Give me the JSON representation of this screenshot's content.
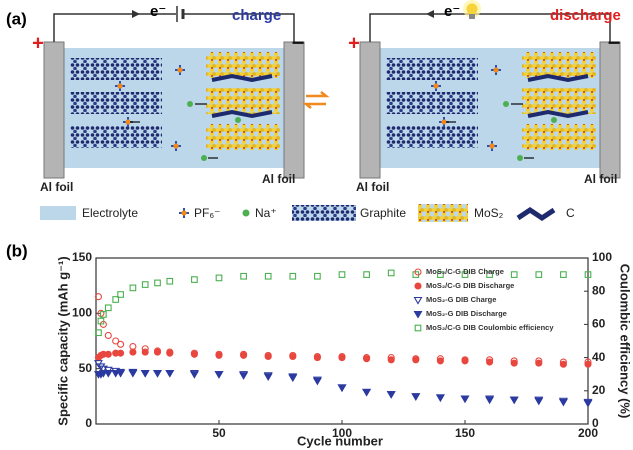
{
  "panel_a": {
    "label": "(a)",
    "charge_cell": {
      "electron": "e⁻",
      "mode": "charge",
      "positive": "+",
      "negative": "−"
    },
    "discharge_cell": {
      "electron": "e⁻",
      "mode": "discharge",
      "positive": "+",
      "negative": "−"
    },
    "al_foil_labels": [
      "Al foil",
      "Al foil",
      "Al foil",
      "Al foil"
    ],
    "legend": [
      "Electrolyte",
      "PF₆⁻",
      "Na⁺",
      "Graphite",
      "MoS₂",
      "C"
    ]
  },
  "chart_data": {
    "type": "scatter",
    "panel_label": "(b)",
    "x_label": "Cycle number",
    "y_label": "Specific capacity (mAh g⁻¹)",
    "y2_label": "Coulombic efficiency (%)",
    "x": [
      1,
      2,
      3,
      5,
      8,
      10,
      15,
      20,
      25,
      30,
      40,
      50,
      60,
      70,
      80,
      90,
      100,
      110,
      120,
      130,
      140,
      150,
      160,
      170,
      180,
      190,
      200
    ],
    "xlim": [
      0,
      200
    ],
    "xticks": [
      50,
      100,
      150,
      200
    ],
    "ylim": [
      0,
      150
    ],
    "yticks": [
      0,
      50,
      100,
      150
    ],
    "y2lim": [
      0,
      100
    ],
    "y2ticks": [
      0,
      20,
      40,
      60,
      80,
      100
    ],
    "legend_position": "upper-right",
    "series": [
      {
        "name": "MoS₂/C-G DIB Charge",
        "color": "#e8473f",
        "marker": "circle",
        "filled": false,
        "values": [
          115,
          100,
          90,
          80,
          75,
          72,
          70,
          68,
          66,
          65,
          64,
          63,
          63,
          62,
          62,
          61,
          61,
          60,
          60,
          59,
          59,
          58,
          58,
          57,
          57,
          56,
          56
        ]
      },
      {
        "name": "MoS₂/C-G DIB Discharge",
        "color": "#e8473f",
        "marker": "circle",
        "filled": true,
        "values": [
          60,
          62,
          63,
          63,
          64,
          64,
          65,
          65,
          65,
          64,
          63,
          62,
          62,
          61,
          61,
          60,
          60,
          59,
          58,
          58,
          57,
          57,
          56,
          55,
          55,
          54,
          54
        ]
      },
      {
        "name": "MoS₂-G DIB Charge",
        "color": "#2b3aa0",
        "marker": "triangle",
        "filled": false,
        "values": [
          55,
          52,
          50,
          49,
          48,
          47,
          47,
          46,
          46,
          46,
          46,
          45,
          45,
          44,
          43,
          40,
          33,
          29,
          27,
          25,
          24,
          23,
          23,
          22,
          22,
          21,
          20
        ]
      },
      {
        "name": "MoS₂-G DIB Discharge",
        "color": "#2b3aa0",
        "marker": "triangle",
        "filled": true,
        "values": [
          45,
          45,
          46,
          46,
          46,
          46,
          46,
          46,
          46,
          46,
          45,
          45,
          44,
          43,
          42,
          39,
          33,
          29,
          27,
          25,
          24,
          23,
          22,
          22,
          21,
          20,
          19
        ]
      },
      {
        "name": "MoS₂/C-G DIB Coulombic efficiency",
        "color": "#4cb050",
        "marker": "square",
        "filled": false,
        "axis": "y2",
        "values": [
          55,
          62,
          66,
          70,
          75,
          78,
          82,
          84,
          85,
          86,
          87,
          88,
          89,
          89,
          89,
          89,
          90,
          90,
          91,
          90,
          90,
          90,
          90,
          90,
          90,
          90,
          90
        ]
      }
    ]
  }
}
